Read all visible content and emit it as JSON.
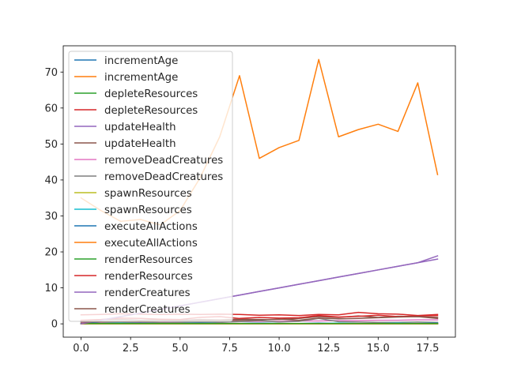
{
  "chart_data": {
    "type": "line",
    "title": "",
    "xlabel": "",
    "ylabel": "",
    "xlim": [
      -0.9,
      18.9
    ],
    "ylim": [
      -3.7,
      77.3
    ],
    "xticks": [
      0,
      2.5,
      5,
      7.5,
      10,
      12.5,
      15,
      17.5
    ],
    "xtick_labels": [
      "0.0",
      "2.5",
      "5.0",
      "7.5",
      "10.0",
      "12.5",
      "15.0",
      "17.5"
    ],
    "yticks": [
      0,
      10,
      20,
      30,
      40,
      50,
      60,
      70
    ],
    "ytick_labels": [
      "0",
      "10",
      "20",
      "30",
      "40",
      "50",
      "60",
      "70"
    ],
    "grid": false,
    "legend_position": "upper-left",
    "x": [
      0,
      1,
      2,
      3,
      4,
      5,
      6,
      7,
      8,
      9,
      10,
      11,
      12,
      13,
      14,
      15,
      16,
      17,
      18
    ],
    "series": [
      {
        "name": "incrementAge",
        "color": "#1f77b4",
        "values": [
          0.0,
          0.0,
          0.0,
          0.0,
          0.0,
          0.0,
          0.0,
          0.0,
          0.0,
          0.0,
          0.0,
          0.0,
          0.0,
          0.0,
          0.0,
          0.0,
          0.0,
          0.0,
          0.0
        ]
      },
      {
        "name": "incrementAge",
        "color": "#ff7f0e",
        "values": [
          35.0,
          31.5,
          28.5,
          29.0,
          27.5,
          31.5,
          40.5,
          52.0,
          69.0,
          46.0,
          49.0,
          51.0,
          73.5,
          52.0,
          54.0,
          55.5,
          53.5,
          67.0,
          41.5
        ]
      },
      {
        "name": "depleteResources",
        "color": "#2ca02c",
        "values": [
          0.1,
          0.1,
          0.1,
          0.1,
          0.1,
          0.1,
          0.1,
          0.1,
          0.1,
          0.1,
          0.1,
          0.1,
          0.1,
          0.1,
          0.1,
          0.1,
          0.1,
          0.1,
          0.1
        ]
      },
      {
        "name": "depleteResources",
        "color": "#d62728",
        "values": [
          2.5,
          2.6,
          2.8,
          2.7,
          2.6,
          2.7,
          2.6,
          2.7,
          2.6,
          2.4,
          2.5,
          2.3,
          2.6,
          2.5,
          3.2,
          2.8,
          2.7,
          2.3,
          2.6
        ]
      },
      {
        "name": "updateHealth",
        "color": "#9467bd",
        "values": [
          0.0,
          1.0,
          2.0,
          3.0,
          4.0,
          5.0,
          6.0,
          7.0,
          8.0,
          9.0,
          10.0,
          11.0,
          12.0,
          13.0,
          14.0,
          15.0,
          16.0,
          17.0,
          18.0
        ]
      },
      {
        "name": "updateHealth",
        "color": "#8c564b",
        "values": [
          0.9,
          1.1,
          1.2,
          1.0,
          1.1,
          1.0,
          1.2,
          1.1,
          1.3,
          1.2,
          1.2,
          1.5,
          2.0,
          1.8,
          2.2,
          1.8,
          2.1,
          2.0,
          1.5
        ]
      },
      {
        "name": "removeDeadCreatures",
        "color": "#e377c2",
        "values": [
          0.2,
          0.3,
          0.3,
          0.4,
          0.4,
          0.5,
          0.5,
          0.6,
          0.6,
          0.7,
          0.7,
          0.8,
          0.8,
          0.9,
          0.9,
          1.0,
          1.0,
          1.1,
          1.1
        ]
      },
      {
        "name": "removeDeadCreatures",
        "color": "#7f7f7f",
        "values": [
          0.8,
          0.5,
          0.4,
          0.6,
          0.3,
          0.4,
          0.5,
          0.4,
          0.6,
          0.9,
          0.5,
          0.7,
          1.5,
          0.6,
          0.5,
          0.4,
          0.4,
          0.5,
          0.4
        ]
      },
      {
        "name": "spawnResources",
        "color": "#bcbd22",
        "values": [
          0.0,
          0.0,
          0.0,
          0.0,
          0.0,
          0.0,
          0.0,
          0.0,
          0.0,
          0.0,
          0.0,
          0.0,
          0.0,
          0.0,
          0.0,
          0.0,
          0.0,
          0.0,
          0.0
        ]
      },
      {
        "name": "spawnResources",
        "color": "#17becf",
        "values": [
          0.1,
          0.1,
          0.2,
          0.1,
          0.1,
          0.1,
          0.2,
          0.1,
          0.1,
          0.2,
          0.1,
          0.1,
          0.1,
          0.2,
          0.1,
          0.1,
          0.2,
          0.1,
          0.2
        ]
      },
      {
        "name": "executeAllActions",
        "color": "#1f77b4",
        "values": [
          0.6,
          0.1,
          0.1,
          0.2,
          0.1,
          0.1,
          0.2,
          0.1,
          0.1,
          0.2,
          0.1,
          0.1,
          0.2,
          0.1,
          0.1,
          0.1,
          0.1,
          0.1,
          0.2
        ]
      },
      {
        "name": "executeAllActions",
        "color": "#ff7f0e",
        "values": [
          0.0,
          0.0,
          0.0,
          0.0,
          0.0,
          0.0,
          0.0,
          0.0,
          0.0,
          0.0,
          0.0,
          0.0,
          0.0,
          0.0,
          0.0,
          0.0,
          0.0,
          0.0,
          0.0
        ]
      },
      {
        "name": "renderResources",
        "color": "#2ca02c",
        "values": [
          0.1,
          0.1,
          0.1,
          0.1,
          0.1,
          0.1,
          0.1,
          0.1,
          0.1,
          0.1,
          0.1,
          0.1,
          0.1,
          0.1,
          0.1,
          0.1,
          0.1,
          0.1,
          0.1
        ]
      },
      {
        "name": "renderResources",
        "color": "#d62728",
        "values": [
          1.0,
          1.2,
          1.6,
          1.5,
          1.3,
          1.2,
          1.8,
          2.0,
          1.5,
          1.8,
          1.6,
          1.7,
          2.3,
          1.9,
          2.1,
          2.4,
          2.0,
          2.2,
          2.3
        ]
      },
      {
        "name": "renderCreatures",
        "color": "#9467bd",
        "values": [
          0.0,
          1.0,
          2.0,
          3.0,
          4.0,
          5.0,
          6.0,
          7.0,
          8.0,
          9.0,
          10.0,
          11.0,
          12.0,
          13.0,
          14.0,
          15.0,
          16.0,
          17.0,
          18.9
        ]
      },
      {
        "name": "renderCreatures",
        "color": "#8c564b",
        "values": [
          0.5,
          0.6,
          0.7,
          0.6,
          0.7,
          0.8,
          0.9,
          0.8,
          1.0,
          1.1,
          1.3,
          1.0,
          1.6,
          1.4,
          1.5,
          1.7,
          1.9,
          2.0,
          1.8
        ]
      }
    ]
  }
}
